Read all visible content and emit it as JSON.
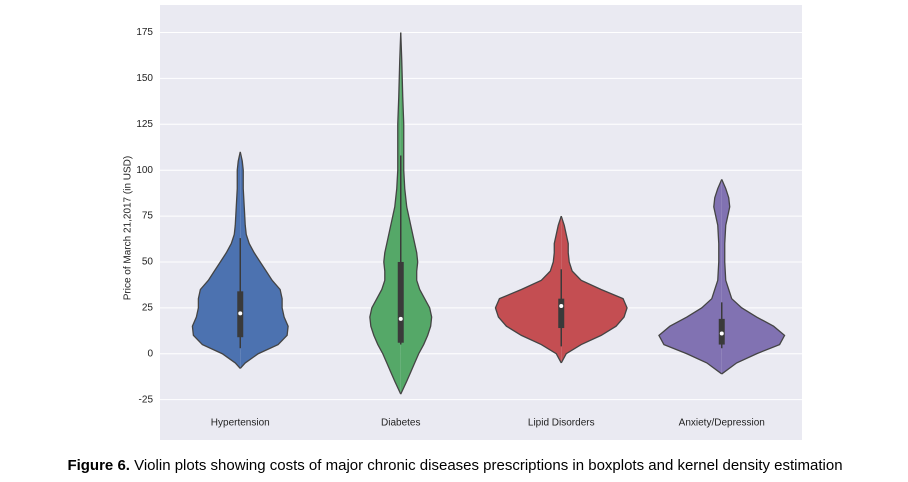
{
  "chart_data": {
    "type": "violin",
    "ylabel": "Price of March 21,2017 (in USD)",
    "categories": [
      "Hypertension",
      "Diabetes",
      "Lipid Disorders",
      "Anxiety/Depression"
    ],
    "ylim": [
      -47,
      190
    ],
    "yticks": [
      -25,
      0,
      25,
      50,
      75,
      100,
      125,
      150,
      175
    ],
    "grid": true,
    "violins": [
      {
        "color": "#4c72b0",
        "kde_y": [
          -8,
          -5,
          0,
          5,
          10,
          15,
          20,
          25,
          30,
          35,
          40,
          45,
          50,
          55,
          60,
          65,
          70,
          80,
          90,
          100,
          105,
          110
        ],
        "kde_density": [
          0,
          5,
          18,
          38,
          47,
          48,
          44,
          42,
          42,
          40,
          32,
          26,
          20,
          14,
          9,
          6,
          5,
          4,
          3,
          3,
          2,
          0
        ],
        "whisker_low": 3,
        "q1": 9,
        "median": 22,
        "q3": 34,
        "whisker_high": 63
      },
      {
        "color": "#55a868",
        "kde_y": [
          -22,
          -15,
          -10,
          -5,
          0,
          5,
          10,
          15,
          20,
          25,
          30,
          35,
          40,
          45,
          50,
          55,
          60,
          70,
          80,
          90,
          100,
          110,
          125,
          140,
          160,
          175
        ],
        "kde_density": [
          0,
          6,
          10,
          14,
          18,
          23,
          27,
          30,
          31,
          29,
          24,
          19,
          16,
          16,
          17,
          16,
          14,
          10,
          6,
          4,
          3,
          3,
          3,
          2,
          1,
          0
        ],
        "whisker_low": 5,
        "q1": 6,
        "median": 19,
        "q3": 50,
        "whisker_high": 108
      },
      {
        "color": "#c44e52",
        "kde_y": [
          -5,
          0,
          5,
          10,
          15,
          20,
          25,
          30,
          35,
          40,
          45,
          50,
          55,
          60,
          65,
          70,
          75
        ],
        "kde_density": [
          0,
          5,
          20,
          40,
          55,
          63,
          66,
          62,
          40,
          20,
          11,
          8,
          7,
          7,
          5,
          3,
          0
        ],
        "whisker_low": 4,
        "q1": 14,
        "median": 26,
        "q3": 30,
        "whisker_high": 46
      },
      {
        "color": "#8172b2",
        "kde_y": [
          -11,
          -5,
          0,
          5,
          10,
          15,
          20,
          25,
          30,
          35,
          40,
          50,
          60,
          70,
          75,
          80,
          85,
          90,
          95
        ],
        "kde_density": [
          0,
          15,
          35,
          58,
          63,
          52,
          35,
          20,
          10,
          7,
          4,
          3,
          3,
          4,
          6,
          8,
          7,
          4,
          0
        ],
        "whisker_low": 3,
        "q1": 5,
        "median": 11,
        "q3": 19,
        "whisker_high": 28
      }
    ]
  },
  "figure_caption": {
    "label": "Figure 6.",
    "text": " Violin plots showing costs of major chronic diseases prescriptions in boxplots and kernel density estimation"
  }
}
